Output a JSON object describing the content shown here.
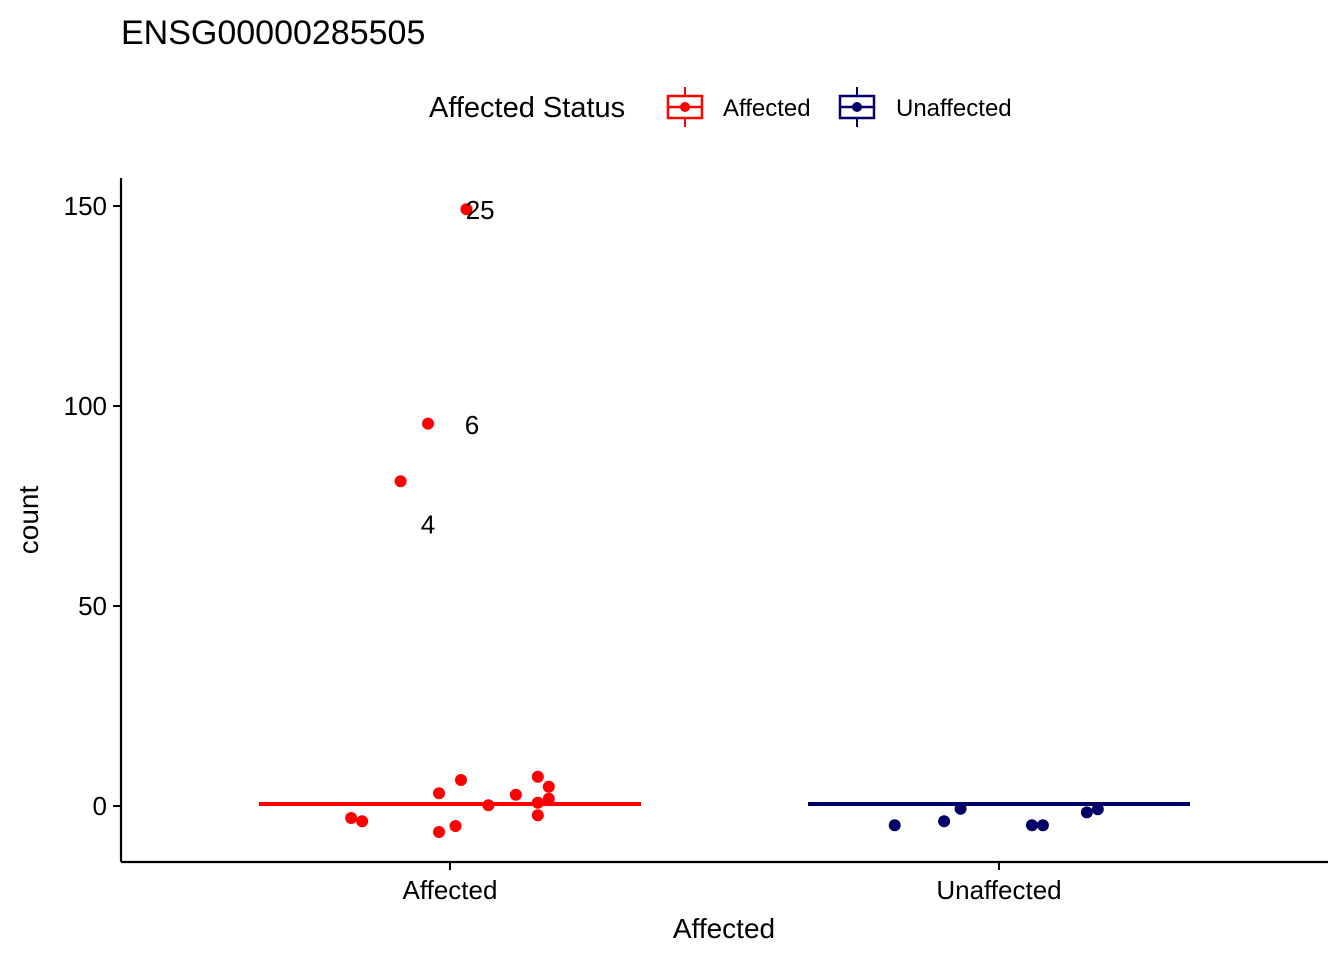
{
  "chart_data": {
    "type": "scatter",
    "title": "ENSG00000285505",
    "xlabel": "Affected",
    "ylabel": "count",
    "categories": [
      "Affected",
      "Unaffected"
    ],
    "ylim": [
      -14,
      157
    ],
    "yticks": [
      0,
      50,
      100,
      150
    ],
    "grid": false,
    "legend": {
      "title": "Affected Status",
      "placement": "top",
      "entries": [
        {
          "label": "Affected",
          "color": "#ff0000"
        },
        {
          "label": "Unaffected",
          "color": "#000066"
        }
      ]
    },
    "medians": [
      {
        "category": "Affected",
        "value": 0.5,
        "color": "#ff0000"
      },
      {
        "category": "Unaffected",
        "value": 0.5,
        "color": "#000066"
      }
    ],
    "series": [
      {
        "category": "Affected",
        "color": "#ff0000",
        "points": [
          {
            "x": 0.03,
            "y": 149.2
          },
          {
            "x": -0.04,
            "y": 95.6
          },
          {
            "x": -0.09,
            "y": 81.2
          },
          {
            "x": -0.18,
            "y": -3.0
          },
          {
            "x": -0.16,
            "y": -3.8
          },
          {
            "x": -0.02,
            "y": 3.2
          },
          {
            "x": 0.02,
            "y": 6.5
          },
          {
            "x": 0.07,
            "y": 0.2
          },
          {
            "x": 0.12,
            "y": 2.8
          },
          {
            "x": 0.16,
            "y": 7.3
          },
          {
            "x": 0.18,
            "y": 4.8
          },
          {
            "x": 0.16,
            "y": 0.8
          },
          {
            "x": 0.18,
            "y": 1.8
          },
          {
            "x": 0.16,
            "y": -2.3
          },
          {
            "x": 0.01,
            "y": -5.0
          },
          {
            "x": -0.02,
            "y": -6.5
          }
        ]
      },
      {
        "category": "Unaffected",
        "color": "#000066",
        "points": [
          {
            "x": -0.19,
            "y": -4.8
          },
          {
            "x": -0.1,
            "y": -3.8
          },
          {
            "x": -0.07,
            "y": -0.7
          },
          {
            "x": 0.06,
            "y": -4.8
          },
          {
            "x": 0.08,
            "y": -4.8
          },
          {
            "x": 0.16,
            "y": -1.6
          },
          {
            "x": 0.18,
            "y": -0.8
          }
        ]
      }
    ],
    "annotations": [
      {
        "text": "25",
        "category": "Affected",
        "x": 0.055,
        "y": 149.0
      },
      {
        "text": "6",
        "category": "Affected",
        "x": 0.04,
        "y": 95.3
      },
      {
        "text": "4",
        "category": "Affected",
        "x": -0.04,
        "y": 70.4
      }
    ]
  }
}
